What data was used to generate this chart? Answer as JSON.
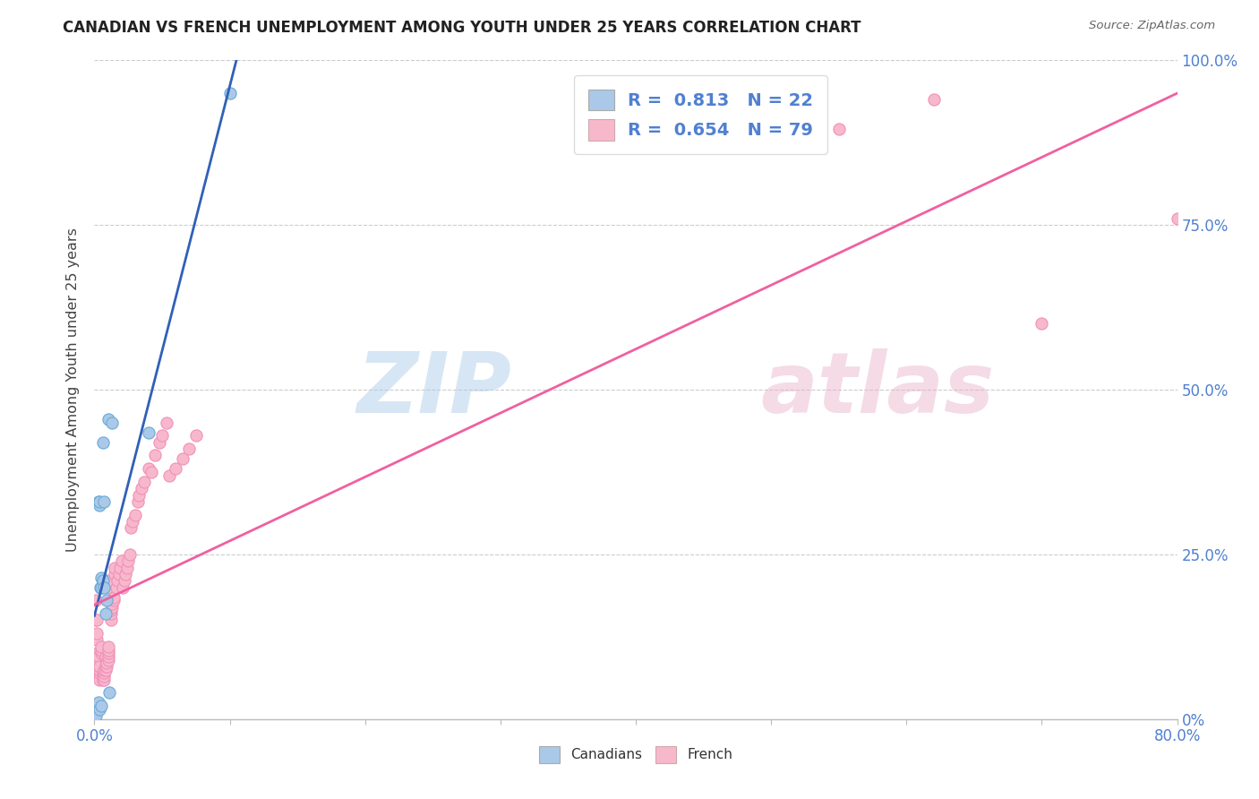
{
  "title": "CANADIAN VS FRENCH UNEMPLOYMENT AMONG YOUTH UNDER 25 YEARS CORRELATION CHART",
  "source": "Source: ZipAtlas.com",
  "ylabel": "Unemployment Among Youth under 25 years",
  "canadian_R": "0.813",
  "canadian_N": "22",
  "french_R": "0.654",
  "french_N": "79",
  "canadian_color": "#aac8e8",
  "french_color": "#f8b8cc",
  "canadian_edge_color": "#6aaad6",
  "french_edge_color": "#f090b8",
  "canadian_line_color": "#3060b8",
  "french_line_color": "#f060a0",
  "background_color": "#ffffff",
  "grid_color": "#cccccc",
  "tick_label_color": "#5080d0",
  "canadians_x": [
    0.001,
    0.002,
    0.003,
    0.003,
    0.0035,
    0.004,
    0.004,
    0.0045,
    0.005,
    0.005,
    0.005,
    0.006,
    0.006,
    0.007,
    0.007,
    0.008,
    0.009,
    0.01,
    0.011,
    0.013,
    0.04,
    0.1
  ],
  "canadians_y": [
    0.005,
    0.022,
    0.025,
    0.33,
    0.015,
    0.325,
    0.33,
    0.2,
    0.2,
    0.215,
    0.02,
    0.21,
    0.42,
    0.2,
    0.33,
    0.16,
    0.18,
    0.455,
    0.04,
    0.45,
    0.435,
    0.95
  ],
  "french_x": [
    0.001,
    0.001,
    0.002,
    0.002,
    0.002,
    0.002,
    0.003,
    0.003,
    0.003,
    0.003,
    0.004,
    0.004,
    0.004,
    0.004,
    0.005,
    0.005,
    0.005,
    0.006,
    0.006,
    0.006,
    0.007,
    0.007,
    0.007,
    0.007,
    0.008,
    0.008,
    0.008,
    0.008,
    0.009,
    0.009,
    0.01,
    0.01,
    0.01,
    0.01,
    0.01,
    0.011,
    0.011,
    0.012,
    0.012,
    0.012,
    0.013,
    0.013,
    0.014,
    0.014,
    0.015,
    0.015,
    0.016,
    0.017,
    0.018,
    0.019,
    0.02,
    0.021,
    0.022,
    0.023,
    0.024,
    0.025,
    0.026,
    0.027,
    0.028,
    0.03,
    0.032,
    0.033,
    0.035,
    0.037,
    0.04,
    0.042,
    0.045,
    0.048,
    0.05,
    0.053,
    0.055,
    0.06,
    0.065,
    0.07,
    0.075,
    0.55,
    0.62,
    0.7,
    0.8
  ],
  "french_y": [
    0.15,
    0.18,
    0.1,
    0.12,
    0.13,
    0.15,
    0.07,
    0.08,
    0.085,
    0.095,
    0.06,
    0.07,
    0.075,
    0.08,
    0.1,
    0.105,
    0.11,
    0.06,
    0.065,
    0.07,
    0.06,
    0.065,
    0.07,
    0.075,
    0.075,
    0.08,
    0.09,
    0.095,
    0.08,
    0.085,
    0.09,
    0.095,
    0.1,
    0.105,
    0.11,
    0.2,
    0.21,
    0.15,
    0.16,
    0.165,
    0.17,
    0.175,
    0.18,
    0.185,
    0.22,
    0.23,
    0.2,
    0.21,
    0.22,
    0.23,
    0.24,
    0.2,
    0.21,
    0.22,
    0.23,
    0.24,
    0.25,
    0.29,
    0.3,
    0.31,
    0.33,
    0.34,
    0.35,
    0.36,
    0.38,
    0.375,
    0.4,
    0.42,
    0.43,
    0.45,
    0.37,
    0.38,
    0.395,
    0.41,
    0.43,
    0.895,
    0.94,
    0.6,
    0.76
  ],
  "xlim": [
    0.0,
    0.8
  ],
  "ylim": [
    0.0,
    1.0
  ],
  "yticks": [
    0.0,
    0.25,
    0.5,
    0.75,
    1.0
  ],
  "ytick_labels_right": [
    "0%",
    "25.0%",
    "50.0%",
    "75.0%",
    "100.0%"
  ],
  "xtick_first": "0.0%",
  "xtick_last": "80.0%",
  "legend_bottom": [
    "Canadians",
    "French"
  ]
}
